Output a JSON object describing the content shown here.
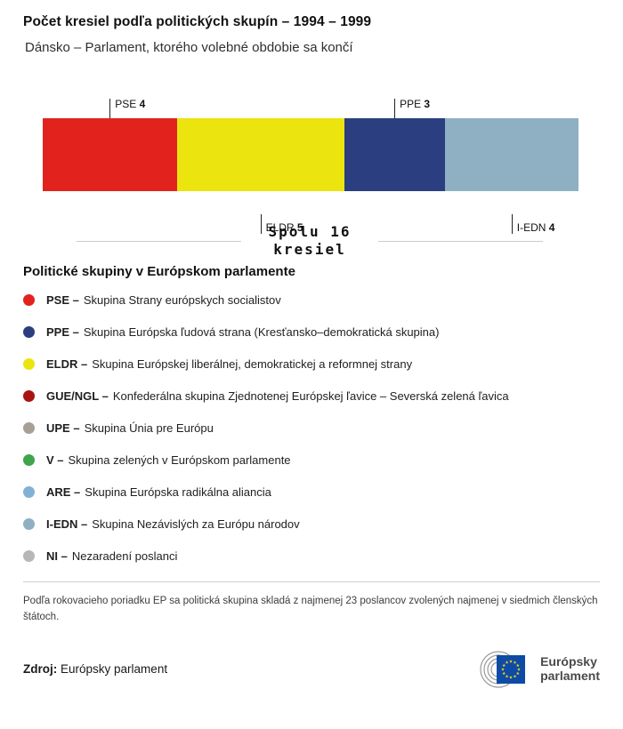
{
  "header": {
    "title": "Počet kresiel podľa politických skupín – 1994 – 1999",
    "subtitle": "Dánsko – Parlament, ktorého volebné obdobie sa končí"
  },
  "chart_data": {
    "type": "bar",
    "variant": "stacked-horizontal",
    "title": "Počet kresiel podľa politických skupín – 1994 – 1999",
    "total": 16,
    "total_lines": [
      "Spolu 16",
      "kresiel"
    ],
    "segments": [
      {
        "name": "PSE",
        "value": 4,
        "color": "#e2231d",
        "label_side": "top"
      },
      {
        "name": "ELDR",
        "value": 5,
        "color": "#ece40e",
        "label_side": "bottom"
      },
      {
        "name": "PPE",
        "value": 3,
        "color": "#2b3e80",
        "label_side": "top"
      },
      {
        "name": "I-EDN",
        "value": 4,
        "color": "#8fb0c3",
        "label_side": "bottom"
      }
    ]
  },
  "legend": {
    "heading": "Politické skupiny v Európskom parlamente",
    "items": [
      {
        "abbr": "PSE –",
        "label": "Skupina Strany európskych socialistov",
        "color": "#e2231d"
      },
      {
        "abbr": "PPE –",
        "label": "Skupina Európska ľudová strana (Kresťansko–demokratická skupina)",
        "color": "#2b3e80"
      },
      {
        "abbr": "ELDR –",
        "label": "Skupina Európskej liberálnej, demokratickej a reformnej strany",
        "color": "#ece40e"
      },
      {
        "abbr": "GUE/NGL –",
        "label": "Konfederálna skupina Zjednotenej Európskej ľavice – Severská zelená ľavica",
        "color": "#a91411"
      },
      {
        "abbr": "UPE –",
        "label": "Skupina Únia pre Európu",
        "color": "#a89f97"
      },
      {
        "abbr": "V –",
        "label": "Skupina zelených v Európskom parlamente",
        "color": "#3fa54a"
      },
      {
        "abbr": "ARE –",
        "label": "Skupina Európska radikálna aliancia",
        "color": "#83b1d4"
      },
      {
        "abbr": "I-EDN –",
        "label": "Skupina Nezávislých za Európu národov",
        "color": "#8fb0c3"
      },
      {
        "abbr": "NI –",
        "label": "Nezaradení poslanci",
        "color": "#b7b7b7"
      }
    ]
  },
  "footnote": "Podľa rokovacieho poriadku EP sa politická skupina skladá z najmenej 23 poslancov zvolených najmenej v siedmich členských štátoch.",
  "source": {
    "label": "Zdroj:",
    "value": "Európsky parlament"
  },
  "logo": {
    "line1": "Európsky",
    "line2": "parlament"
  }
}
